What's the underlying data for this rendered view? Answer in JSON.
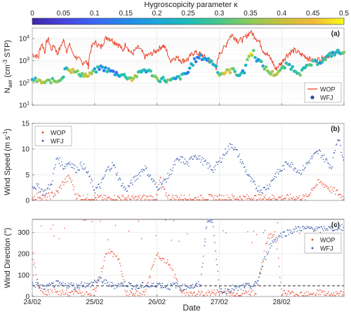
{
  "colorbar": {
    "label": "Hygroscopicity parameter κ",
    "min": 0,
    "max": 0.5,
    "ticks": [
      "0",
      "0.05",
      "0.1",
      "0.15",
      "0.2",
      "0.25",
      "0.3",
      "0.35",
      "0.4",
      "0.45",
      "0.5"
    ],
    "colors": [
      "#3e26a8",
      "#4743e0",
      "#3b67f7",
      "#2489e9",
      "#1ca7d9",
      "#1dbdb8",
      "#48c88c",
      "#8dca5c",
      "#c7c23a",
      "#f2b93b",
      "#f9fb14"
    ]
  },
  "xaxis": {
    "label": "Date",
    "ticks": [
      "24/02",
      "25/02",
      "26/02",
      "27/02",
      "28/02"
    ],
    "start_day": 24,
    "end_day": 29
  },
  "colors": {
    "wop": "#e8462c",
    "wfj": "#2b4fa8",
    "threshold": "#555555"
  },
  "chart_data": [
    {
      "type": "line",
      "panel": "(a)",
      "ylabel_main": "N",
      "ylabel_sub": "aer",
      "ylabel_unit": " (cm",
      "ylabel_sup": "-3",
      "ylabel_tail": " STP)",
      "yscale": "log",
      "ylim": [
        10,
        30000
      ],
      "yticks": [
        10,
        100,
        1000,
        10000
      ],
      "ytick_labels": [
        [
          "10",
          "1"
        ],
        [
          "10",
          "2"
        ],
        [
          "10",
          "3"
        ],
        [
          "10",
          "4"
        ]
      ],
      "legend": [
        "WOP",
        "WFJ"
      ],
      "legend_position": "bottom-right",
      "series": [
        {
          "name": "WOP",
          "style": "line",
          "x": [
            24.0,
            24.1,
            24.15,
            24.2,
            24.25,
            24.3,
            24.35,
            24.4,
            24.45,
            24.5,
            24.55,
            24.6,
            24.65,
            24.7,
            24.8,
            24.85,
            24.9,
            25.0,
            25.1,
            25.2,
            25.3,
            25.4,
            25.45,
            25.5,
            25.55,
            25.6,
            25.7,
            25.8,
            25.9,
            26.0,
            26.1,
            26.2,
            26.3,
            26.4,
            26.5,
            26.6,
            26.7,
            26.8,
            26.9,
            26.95,
            27.0,
            27.1,
            27.2,
            27.3,
            27.4,
            27.5,
            27.6,
            27.7,
            27.8,
            27.9,
            28.0,
            28.1,
            28.2,
            28.3,
            28.4,
            28.5,
            28.6,
            28.7,
            28.8,
            28.9,
            29.0
          ],
          "y": [
            2000,
            1500,
            6000,
            2500,
            10000,
            3000,
            5000,
            2000,
            4000,
            8000,
            3000,
            5000,
            2000,
            1500,
            800,
            1000,
            600,
            7000,
            4000,
            12000,
            8000,
            5000,
            2500,
            6000,
            3000,
            2000,
            4000,
            1500,
            2000,
            3000,
            5000,
            1000,
            1500,
            1000,
            1200,
            2500,
            2000,
            1200,
            900,
            300,
            2000,
            4500,
            15000,
            8000,
            10000,
            20000,
            10000,
            3000,
            1500,
            400,
            800,
            2000,
            3000,
            2000,
            1500,
            1000,
            1200,
            1500,
            2000,
            2500,
            2000
          ]
        },
        {
          "name": "WFJ",
          "style": "points",
          "x": [
            24.0,
            24.1,
            24.2,
            24.3,
            24.4,
            24.5,
            24.55,
            24.6,
            24.7,
            24.8,
            24.9,
            25.0,
            25.1,
            25.2,
            25.3,
            25.4,
            25.5,
            25.6,
            25.7,
            25.8,
            25.9,
            26.0,
            26.1,
            26.2,
            26.3,
            26.4,
            26.5,
            26.6,
            26.7,
            26.8,
            26.9,
            27.0,
            27.1,
            27.2,
            27.3,
            27.4,
            27.5,
            27.55,
            27.6,
            27.7,
            27.8,
            27.9,
            28.0,
            28.1,
            28.2,
            28.3,
            28.4,
            28.5,
            28.6,
            28.7,
            28.8,
            28.9,
            29.0
          ],
          "y": [
            150,
            120,
            100,
            130,
            120,
            200,
            600,
            400,
            300,
            250,
            200,
            350,
            500,
            400,
            300,
            250,
            200,
            150,
            250,
            400,
            300,
            150,
            150,
            120,
            150,
            200,
            300,
            1000,
            1500,
            1200,
            800,
            250,
            300,
            400,
            250,
            300,
            2000,
            2500,
            1200,
            600,
            300,
            250,
            400,
            700,
            400,
            300,
            500,
            800,
            900,
            1200,
            2000,
            2500,
            2000
          ],
          "kappa": [
            0.2,
            0.4,
            0.35,
            0.3,
            0.4,
            0.3,
            0.25,
            0.4,
            0.35,
            0.3,
            0.4,
            0.25,
            0.15,
            0.2,
            0.15,
            0.2,
            0.3,
            0.4,
            0.35,
            0.2,
            0.25,
            0.3,
            0.25,
            0.35,
            0.2,
            0.3,
            0.15,
            0.2,
            0.15,
            0.2,
            0.25,
            0.3,
            0.4,
            0.35,
            0.25,
            0.2,
            0.45,
            0.3,
            0.2,
            0.25,
            0.35,
            0.4,
            0.25,
            0.3,
            0.2,
            0.35,
            0.25,
            0.3,
            0.2,
            0.25,
            0.2,
            0.25,
            0.3
          ]
        }
      ]
    },
    {
      "type": "scatter",
      "panel": "(b)",
      "ylabel_main": "Wind Speed (m s",
      "ylabel_sup": "-1",
      "ylabel_tail": ")",
      "ylim": [
        0,
        15
      ],
      "yticks": [
        0,
        5,
        10,
        15
      ],
      "legend": [
        "WOP",
        "WFJ"
      ],
      "legend_position": "top-left",
      "series": [
        {
          "name": "WOP",
          "x": [
            24.0,
            24.1,
            24.2,
            24.3,
            24.4,
            24.5,
            24.6,
            24.65,
            24.7,
            24.8,
            24.9,
            25.0,
            25.2,
            25.4,
            25.6,
            25.8,
            26.0,
            26.05,
            26.1,
            26.2,
            26.4,
            26.6,
            26.8,
            27.0,
            27.2,
            27.4,
            27.6,
            27.8,
            28.0,
            28.2,
            28.4,
            28.5,
            28.6,
            28.7,
            28.8,
            28.9,
            29.0
          ],
          "y": [
            0.5,
            1.0,
            0.5,
            1.0,
            1.5,
            3.5,
            4.5,
            3.0,
            1.0,
            0.5,
            0.5,
            0.5,
            0.3,
            0.5,
            0.3,
            0.5,
            0.5,
            4.5,
            2.0,
            0.5,
            0.5,
            0.3,
            0.5,
            0.5,
            0.5,
            0.5,
            0.5,
            0.5,
            0.5,
            0.5,
            0.5,
            2.5,
            3.5,
            3.0,
            2.0,
            1.5,
            0.5
          ]
        },
        {
          "name": "WFJ",
          "x": [
            24.0,
            24.1,
            24.2,
            24.3,
            24.4,
            24.5,
            24.6,
            24.7,
            24.8,
            24.9,
            25.0,
            25.1,
            25.2,
            25.3,
            25.4,
            25.5,
            25.6,
            25.7,
            25.8,
            25.9,
            26.0,
            26.1,
            26.2,
            26.3,
            26.4,
            26.5,
            26.6,
            26.7,
            26.8,
            26.9,
            27.0,
            27.1,
            27.2,
            27.3,
            27.4,
            27.5,
            27.6,
            27.7,
            27.8,
            27.9,
            28.0,
            28.1,
            28.2,
            28.3,
            28.4,
            28.5,
            28.6,
            28.7,
            28.8,
            28.9,
            29.0
          ],
          "y": [
            3.0,
            2.5,
            1.5,
            3.0,
            8.5,
            6.5,
            7.5,
            6.0,
            7.0,
            5.0,
            2.0,
            3.0,
            6.0,
            7.0,
            4.0,
            2.0,
            3.5,
            5.0,
            6.5,
            4.5,
            2.5,
            3.5,
            5.0,
            7.5,
            8.0,
            7.0,
            9.0,
            8.0,
            7.0,
            6.0,
            7.5,
            9.5,
            11.0,
            9.0,
            6.5,
            4.0,
            2.5,
            2.0,
            3.0,
            5.0,
            6.0,
            7.5,
            6.5,
            5.5,
            7.0,
            8.5,
            9.5,
            8.0,
            6.5,
            12.5,
            8.0
          ]
        }
      ]
    },
    {
      "type": "scatter",
      "panel": "(c)",
      "ylabel_main": "Wind Direction (°)",
      "ylim": [
        0,
        360
      ],
      "yticks": [
        0,
        100,
        200,
        300
      ],
      "threshold": 50,
      "legend": [
        "WOP",
        "WFJ"
      ],
      "legend_position": "right",
      "series": [
        {
          "name": "WOP",
          "x": [
            24.0,
            24.05,
            24.1,
            24.15,
            24.2,
            24.3,
            24.4,
            24.5,
            24.6,
            24.7,
            24.8,
            24.9,
            25.0,
            25.2,
            25.3,
            25.4,
            25.5,
            25.6,
            25.8,
            26.0,
            26.2,
            26.4,
            26.6,
            26.8,
            27.0,
            27.2,
            27.4,
            27.6,
            27.65,
            27.7,
            27.75,
            27.8,
            27.9,
            28.0,
            28.2,
            28.4,
            28.6,
            28.8,
            29.0
          ],
          "y": [
            200,
            120,
            60,
            30,
            20,
            25,
            15,
            20,
            10,
            20,
            15,
            10,
            20,
            210,
            200,
            170,
            20,
            10,
            15,
            200,
            150,
            20,
            10,
            15,
            20,
            10,
            15,
            20,
            100,
            180,
            250,
            280,
            300,
            20,
            10,
            15,
            20,
            10,
            15
          ]
        },
        {
          "name": "WFJ",
          "x": [
            24.0,
            24.1,
            24.2,
            24.3,
            24.4,
            24.5,
            24.6,
            24.7,
            24.8,
            24.9,
            25.0,
            25.1,
            25.2,
            25.3,
            25.4,
            25.5,
            25.6,
            25.7,
            25.8,
            25.9,
            26.0,
            26.1,
            26.2,
            26.3,
            26.4,
            26.5,
            26.6,
            26.7,
            26.8,
            26.9,
            27.0,
            27.1,
            27.2,
            27.3,
            27.4,
            27.5,
            27.6,
            27.7,
            27.8,
            27.9,
            28.0,
            28.1,
            28.2,
            28.3,
            28.4,
            28.5,
            28.6,
            28.7,
            28.8,
            28.9,
            29.0
          ],
          "y": [
            60,
            50,
            40,
            50,
            60,
            50,
            55,
            45,
            60,
            50,
            70,
            80,
            60,
            50,
            55,
            60,
            50,
            40,
            55,
            45,
            60,
            50,
            45,
            55,
            40,
            50,
            45,
            60,
            350,
            350,
            30,
            25,
            40,
            35,
            50,
            45,
            60,
            150,
            230,
            270,
            290,
            300,
            310,
            320,
            315,
            320,
            310,
            320,
            315,
            325,
            320
          ]
        }
      ]
    }
  ]
}
